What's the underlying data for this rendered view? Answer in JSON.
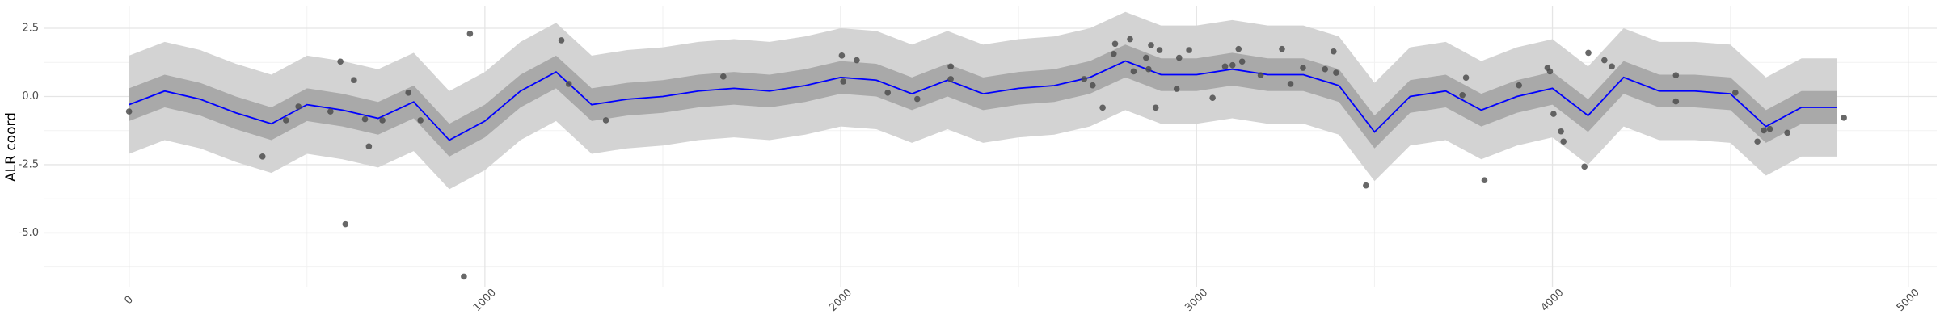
{
  "chart_data": {
    "type": "line",
    "y_label": "ALR coord",
    "xlim": [
      -240,
      5080
    ],
    "ylim": [
      -7.0,
      3.3
    ],
    "xticks": [
      0,
      1000,
      2000,
      3000,
      4000,
      5000
    ],
    "yticks": [
      2.5,
      {
        "value": 0,
        "label": "0.0"
      },
      -2.5,
      {
        "value": -5,
        "label": "-5.0"
      }
    ],
    "x_minor_ticks": [
      500,
      1500,
      2500,
      3500,
      4500
    ],
    "y_minor_ticks": [
      1.25,
      -1.25,
      -3.75,
      -6.25
    ],
    "grid": true,
    "x": [
      0,
      100,
      200,
      300,
      400,
      500,
      600,
      700,
      800,
      900,
      1000,
      1100,
      1200,
      1300,
      1400,
      1500,
      1600,
      1700,
      1800,
      1900,
      2000,
      2100,
      2200,
      2300,
      2400,
      2500,
      2600,
      2700,
      2800,
      2900,
      3000,
      3100,
      3200,
      3300,
      3400,
      3500,
      3600,
      3700,
      3800,
      3900,
      4000,
      4100,
      4200,
      4300,
      4400,
      4500,
      4600,
      4700,
      4800
    ],
    "bands": [
      {
        "color": "#d3d3d3",
        "upper": [
          1.5,
          2.0,
          1.7,
          1.2,
          0.8,
          1.5,
          1.3,
          1.0,
          1.6,
          0.2,
          0.9,
          2.0,
          2.7,
          1.5,
          1.7,
          1.8,
          2.0,
          2.1,
          2.0,
          2.2,
          2.5,
          2.4,
          1.9,
          2.4,
          1.9,
          2.1,
          2.2,
          2.5,
          3.1,
          2.6,
          2.6,
          2.8,
          2.6,
          2.6,
          2.2,
          0.5,
          1.8,
          2.0,
          1.3,
          1.8,
          2.1,
          1.1,
          2.5,
          2.0,
          2.0,
          1.9,
          0.7,
          1.4,
          1.4
        ],
        "lower": [
          -2.1,
          -1.6,
          -1.9,
          -2.4,
          -2.8,
          -2.1,
          -2.3,
          -2.6,
          -2.0,
          -3.4,
          -2.7,
          -1.6,
          -0.9,
          -2.1,
          -1.9,
          -1.8,
          -1.6,
          -1.5,
          -1.6,
          -1.4,
          -1.1,
          -1.2,
          -1.7,
          -1.2,
          -1.7,
          -1.5,
          -1.4,
          -1.1,
          -0.5,
          -1.0,
          -1.0,
          -0.8,
          -1.0,
          -1.0,
          -1.4,
          -3.1,
          -1.8,
          -1.6,
          -2.3,
          -1.8,
          -1.5,
          -2.5,
          -1.1,
          -1.6,
          -1.6,
          -1.7,
          -2.9,
          -2.2,
          -2.2
        ]
      },
      {
        "color": "#a9a9a9",
        "upper": [
          0.3,
          0.8,
          0.5,
          0,
          -0.4,
          0.3,
          0.1,
          -0.2,
          0.4,
          -1.0,
          -0.3,
          0.8,
          1.5,
          0.3,
          0.5,
          0.6,
          0.8,
          0.9,
          0.8,
          1.0,
          1.3,
          1.2,
          0.7,
          1.2,
          0.7,
          0.9,
          1.0,
          1.3,
          1.9,
          1.4,
          1.4,
          1.6,
          1.4,
          1.4,
          1.0,
          -0.7,
          0.6,
          0.8,
          0.1,
          0.6,
          0.9,
          -0.1,
          1.3,
          0.8,
          0.8,
          0.7,
          -0.5,
          0.2,
          0.2
        ],
        "lower": [
          -0.9,
          -0.4,
          -0.7,
          -1.2,
          -1.6,
          -0.9,
          -1.1,
          -1.4,
          -0.8,
          -2.2,
          -1.5,
          -0.4,
          0.3,
          -0.9,
          -0.7,
          -0.6,
          -0.4,
          -0.3,
          -0.4,
          -0.2,
          0.1,
          0,
          -0.5,
          0,
          -0.5,
          -0.3,
          -0.2,
          0.1,
          0.7,
          0.2,
          0.2,
          0.4,
          0.2,
          0.2,
          -0.2,
          -1.9,
          -0.6,
          -0.4,
          -1.1,
          -0.6,
          -0.3,
          -1.3,
          0.1,
          -0.4,
          -0.4,
          -0.5,
          -1.7,
          -1.0,
          -1.0
        ]
      }
    ],
    "mean": {
      "color": "#0000ff",
      "values": [
        -0.3,
        0.2,
        -0.1,
        -0.6,
        -1.0,
        -0.3,
        -0.5,
        -0.8,
        -0.2,
        -1.6,
        -0.9,
        0.2,
        0.9,
        -0.3,
        -0.1,
        0.0,
        0.2,
        0.3,
        0.2,
        0.4,
        0.7,
        0.6,
        0.1,
        0.6,
        0.1,
        0.3,
        0.4,
        0.7,
        1.3,
        0.8,
        0.8,
        1.0,
        0.8,
        0.8,
        0.4,
        -1.3,
        0.0,
        0.2,
        -0.5,
        0.0,
        0.3,
        -0.7,
        0.7,
        0.2,
        0.2,
        0.1,
        -1.1,
        -0.4,
        -0.4
      ]
    },
    "points": {
      "color": "#4d4d4d",
      "x": [
        0,
        375,
        441,
        476,
        566,
        594,
        608,
        632,
        663,
        674,
        712,
        785,
        819,
        941,
        958,
        1215,
        1236,
        1340,
        1670,
        2003,
        2007,
        2045,
        2132,
        2215,
        2309,
        2309,
        2684,
        2708,
        2736,
        2767,
        2771,
        2813,
        2823,
        2858,
        2865,
        2872,
        2885,
        2896,
        2944,
        2951,
        2979,
        3045,
        3080,
        3101,
        3118,
        3128,
        3180,
        3240,
        3264,
        3299,
        3361,
        3385,
        3392,
        3476,
        3747,
        3757,
        3809,
        3906,
        3986,
        3993,
        4003,
        4024,
        4031,
        4090,
        4101,
        4146,
        4167,
        4347,
        4347,
        4514,
        4576,
        4594,
        4611,
        4660,
        4819
      ],
      "y": [
        -0.55,
        -2.2,
        -0.87,
        -0.37,
        -0.55,
        1.28,
        -4.68,
        0.6,
        -0.83,
        -1.83,
        -0.87,
        0.14,
        -0.87,
        -6.6,
        2.3,
        2.06,
        0.46,
        -0.87,
        0.73,
        1.5,
        0.55,
        1.33,
        0.14,
        -0.09,
        1.1,
        0.64,
        0.64,
        0.41,
        -0.41,
        1.56,
        1.93,
        2.1,
        0.92,
        1.42,
        1.0,
        1.88,
        -0.41,
        1.7,
        0.28,
        1.42,
        1.7,
        -0.05,
        1.1,
        1.15,
        1.74,
        1.28,
        0.78,
        1.74,
        0.46,
        1.05,
        1.0,
        1.65,
        0.87,
        -3.26,
        0.05,
        0.69,
        -3.07,
        0.41,
        1.05,
        0.92,
        -0.64,
        -1.28,
        -1.65,
        -2.57,
        1.6,
        1.33,
        1.1,
        0.78,
        -0.18,
        0.14,
        -1.65,
        -1.24,
        -1.19,
        -1.33,
        -0.78
      ]
    }
  }
}
